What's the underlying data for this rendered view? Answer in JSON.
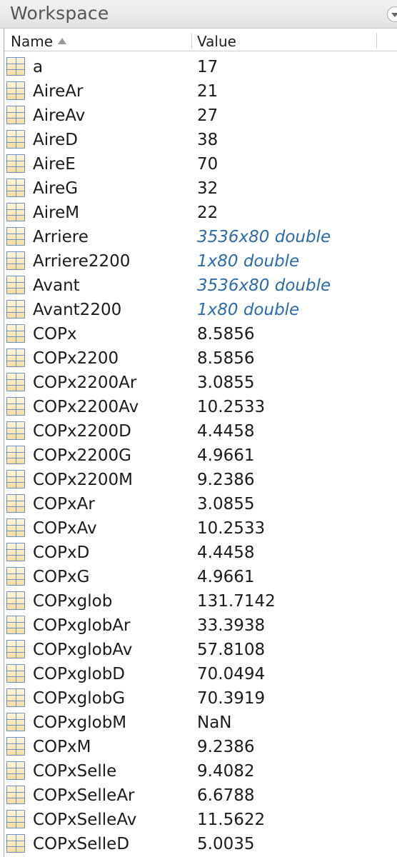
{
  "window": {
    "title": "Workspace"
  },
  "columns": {
    "name": "Name",
    "value": "Value"
  },
  "variables": [
    {
      "name": "a",
      "value": "17",
      "type": "scalar"
    },
    {
      "name": "AireAr",
      "value": "21",
      "type": "scalar"
    },
    {
      "name": "AireAv",
      "value": "27",
      "type": "scalar"
    },
    {
      "name": "AireD",
      "value": "38",
      "type": "scalar"
    },
    {
      "name": "AireE",
      "value": "70",
      "type": "scalar"
    },
    {
      "name": "AireG",
      "value": "32",
      "type": "scalar"
    },
    {
      "name": "AireM",
      "value": "22",
      "type": "scalar"
    },
    {
      "name": "Arriere",
      "value": "3536x80 double",
      "type": "matrix"
    },
    {
      "name": "Arriere2200",
      "value": "1x80 double",
      "type": "matrix"
    },
    {
      "name": "Avant",
      "value": "3536x80 double",
      "type": "matrix"
    },
    {
      "name": "Avant2200",
      "value": "1x80 double",
      "type": "matrix"
    },
    {
      "name": "COPx",
      "value": "8.5856",
      "type": "scalar"
    },
    {
      "name": "COPx2200",
      "value": "8.5856",
      "type": "scalar"
    },
    {
      "name": "COPx2200Ar",
      "value": "3.0855",
      "type": "scalar"
    },
    {
      "name": "COPx2200Av",
      "value": "10.2533",
      "type": "scalar"
    },
    {
      "name": "COPx2200D",
      "value": "4.4458",
      "type": "scalar"
    },
    {
      "name": "COPx2200G",
      "value": "4.9661",
      "type": "scalar"
    },
    {
      "name": "COPx2200M",
      "value": "9.2386",
      "type": "scalar"
    },
    {
      "name": "COPxAr",
      "value": "3.0855",
      "type": "scalar"
    },
    {
      "name": "COPxAv",
      "value": "10.2533",
      "type": "scalar"
    },
    {
      "name": "COPxD",
      "value": "4.4458",
      "type": "scalar"
    },
    {
      "name": "COPxG",
      "value": "4.9661",
      "type": "scalar"
    },
    {
      "name": "COPxglob",
      "value": "131.7142",
      "type": "scalar"
    },
    {
      "name": "COPxglobAr",
      "value": "33.3938",
      "type": "scalar"
    },
    {
      "name": "COPxglobAv",
      "value": "57.8108",
      "type": "scalar"
    },
    {
      "name": "COPxglobD",
      "value": "70.0494",
      "type": "scalar"
    },
    {
      "name": "COPxglobG",
      "value": "70.3919",
      "type": "scalar"
    },
    {
      "name": "COPxglobM",
      "value": "NaN",
      "type": "scalar"
    },
    {
      "name": "COPxM",
      "value": "9.2386",
      "type": "scalar"
    },
    {
      "name": "COPxSelle",
      "value": "9.4082",
      "type": "scalar"
    },
    {
      "name": "COPxSelleAr",
      "value": "6.6788",
      "type": "scalar"
    },
    {
      "name": "COPxSelleAv",
      "value": "11.5622",
      "type": "scalar"
    },
    {
      "name": "COPxSelleD",
      "value": "5.0035",
      "type": "scalar"
    }
  ],
  "colors": {
    "matrix_value": "#2c6aa8",
    "icon_border": "#6b8fc9",
    "icon_fill": "#f5dea0"
  },
  "icons": {
    "variable": "grid-table-icon",
    "sort": "sort-ascending-icon",
    "panel_menu": "panel-actions-icon"
  }
}
